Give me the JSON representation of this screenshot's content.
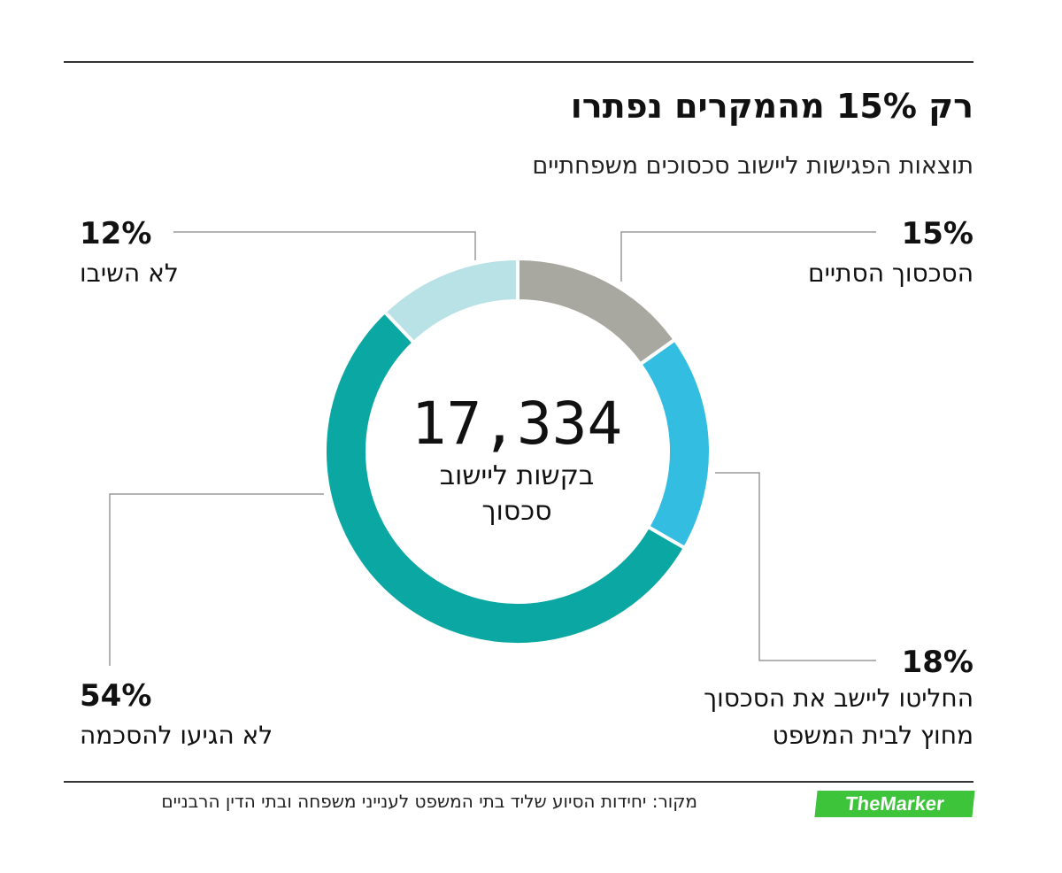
{
  "header": {
    "title": "רק 15% מהמקרים נפתרו",
    "subtitle": "תוצאות הפגישות ליישוב סכסוכים משפחתיים"
  },
  "chart_data": {
    "type": "pie",
    "donut": true,
    "center_value": "17,334",
    "center_label_line1": "בקשות ליישוב",
    "center_label_line2": "סכסוך",
    "slices": [
      {
        "label": "הסכסוך הסתיים",
        "value": 15,
        "display": "15%",
        "color": "#a9a8a0"
      },
      {
        "label_line1": "החליטו ליישב את הסכסוך",
        "label_line2": "מחוץ לבית המשפט",
        "value": 18,
        "display": "18%",
        "color": "#33bde0"
      },
      {
        "label": "לא הגיעו להסכמה",
        "value": 54,
        "display": "54%",
        "color": "#0aa7a3"
      },
      {
        "label": "לא השיבו",
        "value": 12,
        "display": "12%",
        "color": "#b8e2e6"
      }
    ]
  },
  "footer": {
    "source": "מקור: יחידות הסיוע שליד בתי המשפט לענייני משפחה ובתי הדין הרבניים",
    "logo": "TheMarker"
  }
}
